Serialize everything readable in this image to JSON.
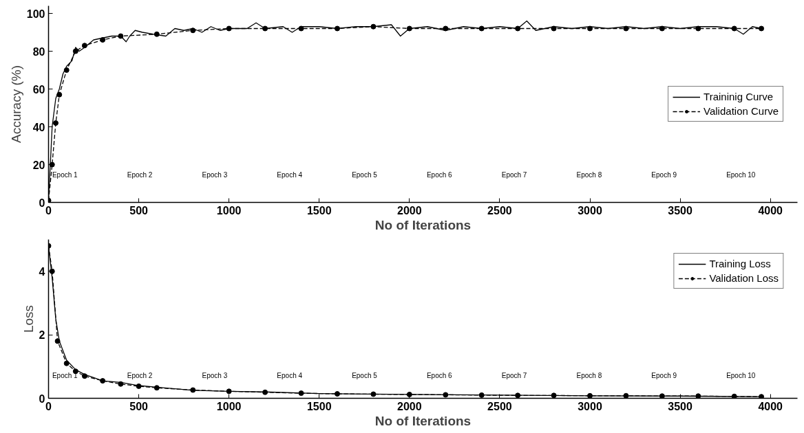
{
  "chart_data": [
    {
      "type": "line",
      "ylabel": "Accuracy (%)",
      "xlabel": "No of Iterations",
      "xlim": [
        0,
        4150
      ],
      "ylim": [
        0,
        104
      ],
      "xticks": [
        0,
        500,
        1000,
        1500,
        2000,
        2500,
        3000,
        3500,
        4000
      ],
      "yticks": [
        0,
        20,
        40,
        60,
        80,
        100
      ],
      "grid": false,
      "legend": "right",
      "series": [
        {
          "name": "Traininig Curve",
          "color": "#000000",
          "line_style": "solid",
          "marker": "none",
          "x": [
            0,
            10,
            20,
            40,
            60,
            80,
            100,
            130,
            150,
            170,
            200,
            250,
            300,
            350,
            400,
            430,
            450,
            480,
            520,
            580,
            650,
            700,
            750,
            800,
            850,
            900,
            950,
            1000,
            1100,
            1150,
            1200,
            1300,
            1350,
            1400,
            1500,
            1600,
            1700,
            1800,
            1900,
            1950,
            2000,
            2100,
            2200,
            2300,
            2400,
            2500,
            2600,
            2650,
            2700,
            2800,
            2900,
            3000,
            3100,
            3200,
            3300,
            3400,
            3500,
            3600,
            3700,
            3800,
            3850,
            3900,
            3950
          ],
          "values": [
            2,
            20,
            40,
            55,
            60,
            68,
            72,
            75,
            82,
            80,
            82,
            86,
            87,
            88,
            88,
            85,
            88,
            91,
            90,
            89,
            88,
            92,
            91,
            92,
            90,
            93,
            91,
            92,
            92,
            95,
            92,
            93,
            90,
            93,
            93,
            92,
            93,
            93,
            94,
            88,
            92,
            93,
            91,
            93,
            92,
            93,
            92,
            96,
            91,
            93,
            92,
            93,
            92,
            93,
            92,
            93,
            92,
            93,
            93,
            92,
            89,
            93,
            92
          ]
        },
        {
          "name": "Validation Curve",
          "color": "#000000",
          "line_style": "dashed",
          "marker": "circle",
          "x": [
            0,
            20,
            40,
            60,
            100,
            150,
            200,
            300,
            400,
            600,
            800,
            1000,
            1200,
            1400,
            1600,
            1800,
            2000,
            2200,
            2400,
            2600,
            2800,
            3000,
            3200,
            3400,
            3600,
            3800,
            3950
          ],
          "values": [
            1,
            20,
            42,
            57,
            70,
            80,
            83,
            86,
            88,
            89,
            91,
            92,
            92,
            92,
            92,
            93,
            92,
            92,
            92,
            92,
            92,
            92,
            92,
            92,
            92,
            92,
            92
          ]
        }
      ],
      "annotations": [
        "Epoch 1",
        "Epoch 2",
        "Epoch 3",
        "Epoch 4",
        "Epoch 5",
        "Epoch 6",
        "Epoch 7",
        "Epoch 8",
        "Epoch 9",
        "Epoch 10"
      ]
    },
    {
      "type": "line",
      "ylabel": "Loss",
      "xlabel": "No of Iterations",
      "xlim": [
        0,
        4150
      ],
      "ylim": [
        0,
        5
      ],
      "xticks": [
        0,
        500,
        1000,
        1500,
        2000,
        2500,
        3000,
        3500,
        4000
      ],
      "yticks": [
        0,
        2,
        4
      ],
      "grid": false,
      "legend": "top right",
      "series": [
        {
          "name": "Training Loss",
          "color": "#000000",
          "line_style": "solid",
          "marker": "none",
          "x": [
            0,
            20,
            40,
            60,
            80,
            100,
            150,
            200,
            250,
            300,
            400,
            500,
            600,
            700,
            800,
            1000,
            1200,
            1500,
            2000,
            2500,
            3000,
            3500,
            3950
          ],
          "values": [
            4.8,
            3.8,
            2.5,
            1.8,
            1.5,
            1.2,
            0.9,
            0.75,
            0.65,
            0.55,
            0.5,
            0.4,
            0.35,
            0.3,
            0.25,
            0.22,
            0.2,
            0.15,
            0.12,
            0.1,
            0.08,
            0.07,
            0.05
          ]
        },
        {
          "name": "Validation Loss",
          "color": "#000000",
          "line_style": "dashed",
          "marker": "circle",
          "x": [
            0,
            20,
            50,
            100,
            150,
            200,
            300,
            400,
            500,
            600,
            800,
            1000,
            1200,
            1400,
            1600,
            1800,
            2000,
            2200,
            2400,
            2600,
            2800,
            3000,
            3200,
            3400,
            3600,
            3800,
            3950
          ],
          "values": [
            4.8,
            4,
            1.8,
            1.1,
            0.85,
            0.7,
            0.55,
            0.45,
            0.38,
            0.33,
            0.26,
            0.22,
            0.19,
            0.16,
            0.14,
            0.13,
            0.12,
            0.11,
            0.1,
            0.09,
            0.09,
            0.08,
            0.08,
            0.07,
            0.07,
            0.06,
            0.05
          ]
        }
      ],
      "annotations": [
        "Epoch 1",
        "Epoch 2",
        "Epoch 3",
        "Epoch 4",
        "Epoch 5",
        "Epoch 6",
        "Epoch 7",
        "Epoch 8",
        "Epoch 9",
        "Epoch 10"
      ]
    }
  ]
}
